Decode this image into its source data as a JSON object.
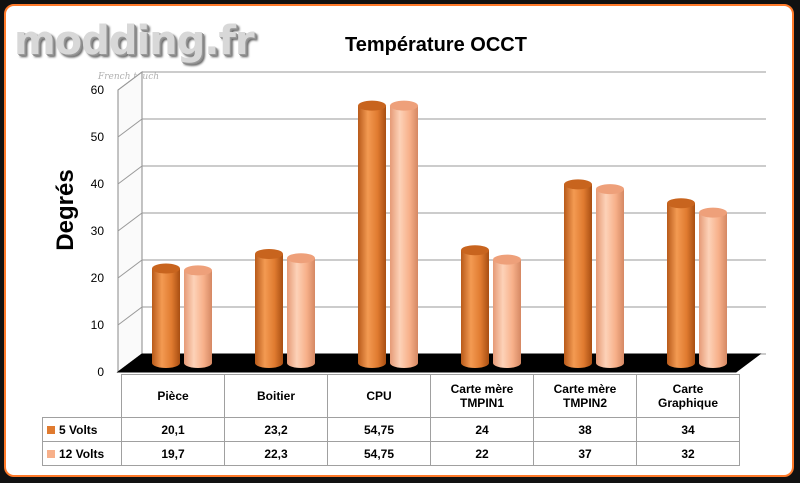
{
  "logo": {
    "text": "modding.fr",
    "subtitle": "French touch"
  },
  "chart_data": {
    "type": "bar",
    "title": "Température OCCT",
    "ylabel": "Degrés",
    "xlabel": "",
    "ylim": [
      0,
      60
    ],
    "yticks": [
      "0",
      "10",
      "20",
      "30",
      "40",
      "50",
      "60"
    ],
    "categories": [
      "Pièce",
      "Boitier",
      "CPU",
      "Carte mère TMPIN1",
      "Carte mère TMPIN2",
      "Carte Graphique"
    ],
    "category_lines": [
      [
        "Pièce"
      ],
      [
        "Boitier"
      ],
      [
        "CPU"
      ],
      [
        "Carte mère",
        "TMPIN1"
      ],
      [
        "Carte mère",
        "TMPIN2"
      ],
      [
        "Carte",
        "Graphique"
      ]
    ],
    "series": [
      {
        "name": "5 Volts",
        "color": "#e07b30",
        "values": [
          20.1,
          23.2,
          54.75,
          24,
          38,
          34
        ],
        "labels": [
          "20,1",
          "23,2",
          "54,75",
          "24",
          "38",
          "34"
        ]
      },
      {
        "name": "12 Volts",
        "color": "#f7b08a",
        "values": [
          19.7,
          22.3,
          54.75,
          22,
          37,
          32
        ],
        "labels": [
          "19,7",
          "22,3",
          "54,75",
          "22",
          "37",
          "32"
        ]
      }
    ]
  }
}
